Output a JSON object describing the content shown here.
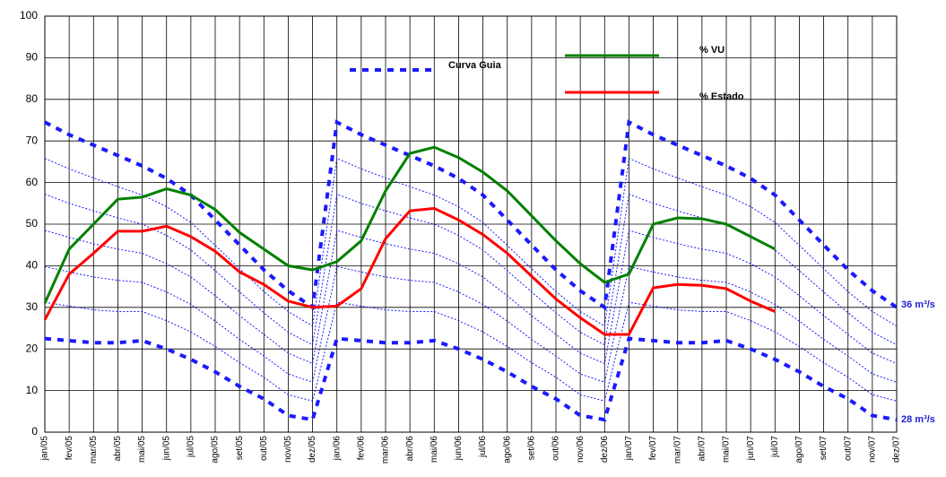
{
  "chart_data": {
    "type": "line",
    "categories": [
      "jan/05",
      "fev/05",
      "mar/05",
      "abr/05",
      "mai/05",
      "jun/05",
      "jul/05",
      "ago/05",
      "set/05",
      "out/05",
      "nov/05",
      "dez/05",
      "jan/06",
      "fev/06",
      "mar/06",
      "abr/06",
      "mai/06",
      "jun/06",
      "jul/06",
      "ago/06",
      "set/06",
      "out/06",
      "nov/06",
      "dez/06",
      "jan/07",
      "fev/07",
      "mar/07",
      "abr/07",
      "mai/07",
      "jun/07",
      "jul/07",
      "ago/07",
      "set/07",
      "out/07",
      "nov/07",
      "dez/07"
    ],
    "ylim": [
      0,
      100
    ],
    "yticks": [
      0,
      10,
      20,
      30,
      40,
      50,
      60,
      70,
      80,
      90,
      100
    ],
    "grid": true,
    "annotations": [
      "36 m³/s",
      "28 m³/s"
    ],
    "series": [
      {
        "name": "Curva Guia",
        "color": "#1a1aff",
        "style": "thick-dotted",
        "values": [
          74.5,
          71.5,
          69,
          66.5,
          64,
          61,
          57,
          51,
          45,
          39,
          34,
          30,
          74.5,
          71.5,
          69,
          66.5,
          64,
          61,
          57,
          51,
          45,
          39,
          34,
          30,
          74.5,
          71.5,
          69,
          66.5,
          64,
          61,
          57,
          51,
          45,
          39,
          34,
          30
        ]
      },
      {
        "color": "#1a1aff",
        "style": "thin-dotted",
        "values": [
          65.8,
          63.3,
          61.1,
          59,
          57,
          54.2,
          50.4,
          44.9,
          39.3,
          33.8,
          29,
          25.5,
          65.8,
          63.3,
          61.1,
          59,
          57,
          54.2,
          50.4,
          44.9,
          39.3,
          33.8,
          29,
          25.5,
          65.8,
          63.3,
          61.1,
          59,
          57,
          54.2,
          50.4,
          44.9,
          39.3,
          33.8,
          29,
          25.5
        ]
      },
      {
        "color": "#1a1aff",
        "style": "thin-dotted",
        "values": [
          57.2,
          55,
          53.2,
          51.5,
          50,
          47.3,
          43.8,
          38.8,
          33.7,
          28.7,
          24,
          21,
          57.2,
          55,
          53.2,
          51.5,
          50,
          47.3,
          43.8,
          38.8,
          33.7,
          28.7,
          24,
          21,
          57.2,
          55,
          53.2,
          51.5,
          50,
          47.3,
          43.8,
          38.8,
          33.7,
          28.7,
          24,
          21
        ]
      },
      {
        "color": "#1a1aff",
        "style": "thin-dotted",
        "values": [
          48.5,
          46.8,
          45.3,
          44,
          43,
          40.5,
          37.3,
          32.8,
          28,
          23.5,
          19,
          16.5,
          48.5,
          46.8,
          45.3,
          44,
          43,
          40.5,
          37.3,
          32.8,
          28,
          23.5,
          19,
          16.5,
          48.5,
          46.8,
          45.3,
          44,
          43,
          40.5,
          37.3,
          32.8,
          28,
          23.5,
          19,
          16.5
        ]
      },
      {
        "color": "#1a1aff",
        "style": "thin-dotted",
        "values": [
          39.8,
          38.5,
          37.3,
          36.5,
          36,
          33.7,
          30.7,
          26.7,
          22.3,
          18.3,
          14,
          12,
          39.8,
          38.5,
          37.3,
          36.5,
          36,
          33.7,
          30.7,
          26.7,
          22.3,
          18.3,
          14,
          12,
          39.8,
          38.5,
          37.3,
          36.5,
          36,
          33.7,
          30.7,
          26.7,
          22.3,
          18.3,
          14,
          12
        ]
      },
      {
        "color": "#1a1aff",
        "style": "thin-dotted",
        "values": [
          31.2,
          30.3,
          29.4,
          29,
          29,
          26.8,
          24.1,
          20.6,
          16.7,
          13.2,
          9,
          7.5,
          31.2,
          30.3,
          29.4,
          29,
          29,
          26.8,
          24.1,
          20.6,
          16.7,
          13.2,
          9,
          7.5,
          31.2,
          30.3,
          29.4,
          29,
          29,
          26.8,
          24.1,
          20.6,
          16.7,
          13.2,
          9,
          7.5
        ]
      },
      {
        "color": "#1a1aff",
        "style": "thick-dotted",
        "values": [
          22.5,
          22,
          21.5,
          21.5,
          22,
          20,
          17.5,
          14.5,
          11,
          8,
          4,
          3,
          22.5,
          22,
          21.5,
          21.5,
          22,
          20,
          17.5,
          14.5,
          11,
          8,
          4,
          3,
          22.5,
          22,
          21.5,
          21.5,
          22,
          20,
          17.5,
          14.5,
          11,
          8,
          4,
          3
        ]
      },
      {
        "name": "% VU",
        "color": "#008000",
        "style": "solid",
        "values": [
          31,
          44,
          50,
          56,
          56.5,
          58.5,
          57,
          53.5,
          48,
          44,
          40,
          39,
          41,
          46,
          58,
          67,
          68.5,
          66,
          62.5,
          58,
          52,
          46,
          40.5,
          36,
          38,
          50,
          51.5,
          51.3,
          50,
          47,
          44,
          null,
          null,
          null,
          null,
          null
        ]
      },
      {
        "name": "% Estado",
        "color": "#ff0000",
        "style": "solid",
        "values": [
          27,
          38,
          43,
          48.3,
          48.3,
          49.5,
          47,
          43.5,
          38.5,
          35.5,
          31.5,
          30,
          30.3,
          34.5,
          46.5,
          53.2,
          53.8,
          51,
          47.5,
          43,
          37.5,
          32,
          27.5,
          23.5,
          23.5,
          34.7,
          35.5,
          35.3,
          34.5,
          31.5,
          29,
          null,
          null,
          null,
          null,
          null
        ]
      }
    ]
  }
}
